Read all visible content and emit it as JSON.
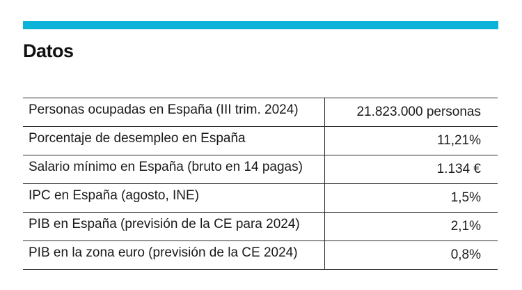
{
  "colors": {
    "accent_bar": "#0bb3d9",
    "text": "#1a1a1a",
    "rule": "#2b2b2b"
  },
  "title": "Datos",
  "rows": [
    {
      "label": "Personas ocupadas en España (III trim. 2024)",
      "value": "21.823.000 personas"
    },
    {
      "label": "Porcentaje de desempleo en España",
      "value": "11,21%"
    },
    {
      "label": "Salario mínimo en España (bruto en 14 pagas)",
      "value": "1.134 €"
    },
    {
      "label": "IPC en España (agosto, INE)",
      "value": "1,5%"
    },
    {
      "label": "PIB en España (previsión de la CE para 2024)",
      "value": "2,1%"
    },
    {
      "label": "PIB en la zona euro (previsión de la CE 2024)",
      "value": "0,8%"
    }
  ]
}
